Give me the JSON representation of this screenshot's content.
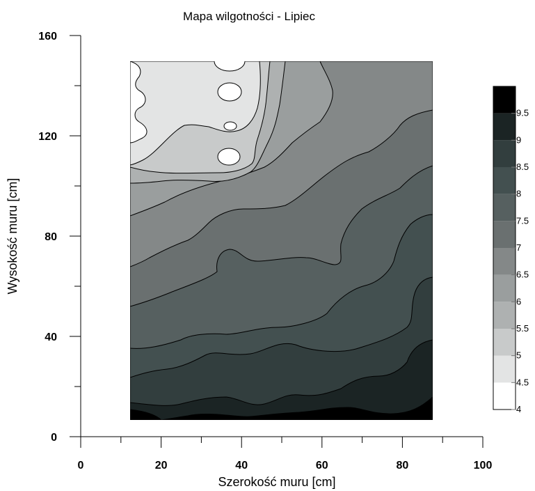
{
  "chart_data": {
    "type": "heatmap",
    "subtype": "filled-contour",
    "title": "Mapa wilgotności - Lipiec",
    "xlabel": "Szerokość muru [cm]",
    "ylabel": "Wysokość muru [cm]",
    "xlim": [
      0,
      100
    ],
    "ylim": [
      0,
      160
    ],
    "x_ticks": [
      "0",
      "20",
      "40",
      "60",
      "80",
      "100"
    ],
    "y_ticks": [
      "0",
      "40",
      "80",
      "120",
      "160"
    ],
    "data_extent": {
      "x": [
        12.5,
        87.5
      ],
      "y": [
        7,
        150
      ]
    },
    "contour_levels": [
      4,
      4.5,
      5,
      5.5,
      6,
      6.5,
      7,
      7.5,
      8,
      8.5,
      9,
      9.5
    ],
    "colorscale": {
      "labels": [
        "4",
        "4.5",
        "5",
        "5.5",
        "6",
        "6.5",
        "7",
        "7.5",
        "8",
        "8.5",
        "9",
        "9.5"
      ],
      "colors": [
        "#ffffff",
        "#e3e4e4",
        "#c8caca",
        "#aeb1b1",
        "#9a9e9e",
        "#848888",
        "#6a7070",
        "#566060",
        "#435050",
        "#323e3e",
        "#1b2424",
        "#000000"
      ]
    },
    "grid": false,
    "legend": "right"
  }
}
